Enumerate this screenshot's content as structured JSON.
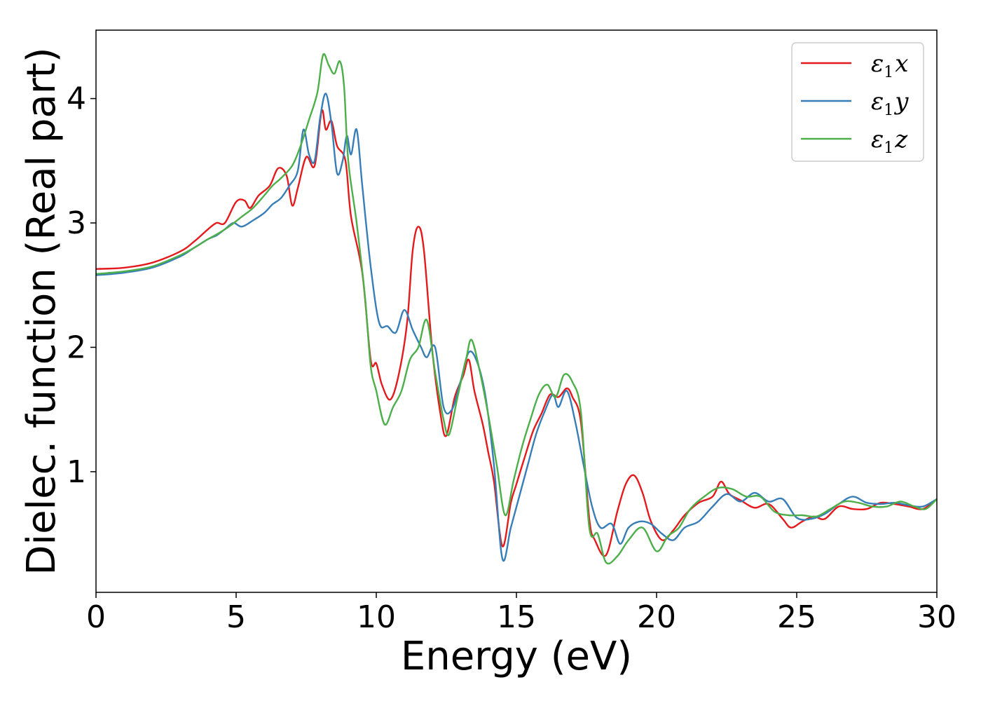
{
  "chart_data": {
    "type": "line",
    "title": "",
    "xlabel": "Energy (eV)",
    "ylabel": "Dielec. function (Real part)",
    "xlim": [
      0,
      30
    ],
    "ylim": [
      0.03,
      4.55
    ],
    "xticks": [
      0,
      5,
      10,
      15,
      20,
      25,
      30
    ],
    "yticks": [
      1,
      2,
      3,
      4
    ],
    "grid": false,
    "legend_position": "top-right",
    "legend_base": "ε",
    "legend_sub": "1",
    "series": [
      {
        "name": "ε1x",
        "axis_letter": "x",
        "color": "#e41a1c",
        "points": [
          [
            0,
            2.63
          ],
          [
            1,
            2.64
          ],
          [
            2,
            2.68
          ],
          [
            3,
            2.77
          ],
          [
            3.5,
            2.85
          ],
          [
            4,
            2.95
          ],
          [
            4.3,
            3.0
          ],
          [
            4.6,
            3.0
          ],
          [
            5.0,
            3.17
          ],
          [
            5.3,
            3.18
          ],
          [
            5.5,
            3.12
          ],
          [
            5.8,
            3.22
          ],
          [
            6.2,
            3.3
          ],
          [
            6.5,
            3.44
          ],
          [
            6.8,
            3.38
          ],
          [
            7.0,
            3.14
          ],
          [
            7.2,
            3.28
          ],
          [
            7.5,
            3.53
          ],
          [
            7.8,
            3.46
          ],
          [
            8.05,
            3.9
          ],
          [
            8.2,
            3.75
          ],
          [
            8.4,
            3.82
          ],
          [
            8.6,
            3.62
          ],
          [
            8.9,
            3.5
          ],
          [
            9.1,
            3.05
          ],
          [
            9.5,
            2.6
          ],
          [
            9.8,
            1.9
          ],
          [
            10.0,
            1.87
          ],
          [
            10.2,
            1.7
          ],
          [
            10.5,
            1.58
          ],
          [
            10.8,
            1.78
          ],
          [
            11.1,
            2.2
          ],
          [
            11.3,
            2.78
          ],
          [
            11.5,
            2.97
          ],
          [
            11.7,
            2.78
          ],
          [
            12.0,
            1.97
          ],
          [
            12.3,
            1.45
          ],
          [
            12.5,
            1.29
          ],
          [
            12.8,
            1.6
          ],
          [
            13.1,
            1.77
          ],
          [
            13.3,
            1.9
          ],
          [
            13.5,
            1.65
          ],
          [
            13.8,
            1.38
          ],
          [
            14.0,
            1.15
          ],
          [
            14.2,
            0.92
          ],
          [
            14.5,
            0.4
          ],
          [
            14.8,
            0.75
          ],
          [
            15.0,
            0.9
          ],
          [
            15.3,
            1.12
          ],
          [
            15.6,
            1.33
          ],
          [
            15.9,
            1.47
          ],
          [
            16.2,
            1.62
          ],
          [
            16.5,
            1.6
          ],
          [
            16.8,
            1.67
          ],
          [
            17.0,
            1.6
          ],
          [
            17.3,
            1.4
          ],
          [
            17.6,
            0.62
          ],
          [
            17.8,
            0.45
          ],
          [
            18.2,
            0.33
          ],
          [
            18.6,
            0.68
          ],
          [
            18.9,
            0.9
          ],
          [
            19.2,
            0.97
          ],
          [
            19.5,
            0.83
          ],
          [
            19.8,
            0.6
          ],
          [
            20.2,
            0.45
          ],
          [
            20.6,
            0.53
          ],
          [
            21.0,
            0.65
          ],
          [
            21.5,
            0.75
          ],
          [
            22.0,
            0.8
          ],
          [
            22.3,
            0.92
          ],
          [
            22.6,
            0.82
          ],
          [
            23.0,
            0.77
          ],
          [
            23.5,
            0.71
          ],
          [
            24.0,
            0.74
          ],
          [
            24.5,
            0.62
          ],
          [
            24.8,
            0.55
          ],
          [
            25.2,
            0.6
          ],
          [
            25.6,
            0.64
          ],
          [
            26.0,
            0.62
          ],
          [
            26.5,
            0.72
          ],
          [
            27.0,
            0.7
          ],
          [
            27.5,
            0.7
          ],
          [
            28.0,
            0.75
          ],
          [
            28.5,
            0.74
          ],
          [
            29.0,
            0.72
          ],
          [
            29.5,
            0.7
          ],
          [
            30.0,
            0.78
          ]
        ]
      },
      {
        "name": "ε1y",
        "axis_letter": "y",
        "color": "#377eb8",
        "points": [
          [
            0,
            2.58
          ],
          [
            1,
            2.6
          ],
          [
            2,
            2.64
          ],
          [
            3,
            2.73
          ],
          [
            3.5,
            2.8
          ],
          [
            4,
            2.87
          ],
          [
            4.3,
            2.9
          ],
          [
            4.6,
            2.95
          ],
          [
            4.9,
            3.0
          ],
          [
            5.2,
            2.97
          ],
          [
            5.6,
            3.02
          ],
          [
            6.0,
            3.08
          ],
          [
            6.3,
            3.15
          ],
          [
            6.6,
            3.2
          ],
          [
            6.9,
            3.3
          ],
          [
            7.2,
            3.42
          ],
          [
            7.4,
            3.75
          ],
          [
            7.6,
            3.55
          ],
          [
            7.8,
            3.5
          ],
          [
            8.0,
            3.85
          ],
          [
            8.2,
            4.04
          ],
          [
            8.4,
            3.8
          ],
          [
            8.6,
            3.4
          ],
          [
            8.8,
            3.5
          ],
          [
            8.95,
            3.7
          ],
          [
            9.1,
            3.55
          ],
          [
            9.3,
            3.75
          ],
          [
            9.5,
            3.3
          ],
          [
            9.8,
            2.65
          ],
          [
            10.1,
            2.2
          ],
          [
            10.4,
            2.17
          ],
          [
            10.7,
            2.12
          ],
          [
            11.0,
            2.3
          ],
          [
            11.3,
            2.14
          ],
          [
            11.6,
            2.0
          ],
          [
            11.8,
            1.92
          ],
          [
            12.1,
            2.0
          ],
          [
            12.4,
            1.52
          ],
          [
            12.7,
            1.5
          ],
          [
            13.0,
            1.72
          ],
          [
            13.3,
            1.96
          ],
          [
            13.6,
            1.88
          ],
          [
            13.9,
            1.6
          ],
          [
            14.2,
            1.05
          ],
          [
            14.5,
            0.3
          ],
          [
            14.8,
            0.55
          ],
          [
            15.1,
            0.8
          ],
          [
            15.4,
            1.05
          ],
          [
            15.7,
            1.3
          ],
          [
            16.0,
            1.48
          ],
          [
            16.3,
            1.62
          ],
          [
            16.5,
            1.52
          ],
          [
            16.8,
            1.65
          ],
          [
            17.1,
            1.4
          ],
          [
            17.4,
            1.05
          ],
          [
            17.7,
            0.72
          ],
          [
            18.0,
            0.55
          ],
          [
            18.4,
            0.58
          ],
          [
            18.7,
            0.42
          ],
          [
            19.0,
            0.55
          ],
          [
            19.4,
            0.6
          ],
          [
            19.8,
            0.58
          ],
          [
            20.2,
            0.5
          ],
          [
            20.6,
            0.45
          ],
          [
            21.0,
            0.55
          ],
          [
            21.5,
            0.6
          ],
          [
            22.0,
            0.72
          ],
          [
            22.5,
            0.82
          ],
          [
            23.0,
            0.76
          ],
          [
            23.5,
            0.83
          ],
          [
            24.0,
            0.76
          ],
          [
            24.5,
            0.78
          ],
          [
            25.0,
            0.63
          ],
          [
            25.5,
            0.62
          ],
          [
            26.0,
            0.66
          ],
          [
            26.5,
            0.74
          ],
          [
            27.0,
            0.8
          ],
          [
            27.5,
            0.75
          ],
          [
            28.0,
            0.74
          ],
          [
            28.5,
            0.75
          ],
          [
            29.0,
            0.73
          ],
          [
            29.5,
            0.72
          ],
          [
            30.0,
            0.78
          ]
        ]
      },
      {
        "name": "ε1z",
        "axis_letter": "z",
        "color": "#4daf4a",
        "points": [
          [
            0,
            2.59
          ],
          [
            1,
            2.61
          ],
          [
            2,
            2.65
          ],
          [
            3,
            2.74
          ],
          [
            3.5,
            2.8
          ],
          [
            4,
            2.87
          ],
          [
            4.4,
            2.92
          ],
          [
            4.8,
            2.98
          ],
          [
            5.2,
            3.05
          ],
          [
            5.6,
            3.12
          ],
          [
            6.0,
            3.22
          ],
          [
            6.3,
            3.3
          ],
          [
            6.6,
            3.36
          ],
          [
            7.0,
            3.46
          ],
          [
            7.3,
            3.62
          ],
          [
            7.6,
            3.83
          ],
          [
            7.9,
            4.05
          ],
          [
            8.1,
            4.35
          ],
          [
            8.3,
            4.27
          ],
          [
            8.5,
            4.2
          ],
          [
            8.7,
            4.3
          ],
          [
            8.85,
            4.1
          ],
          [
            9.0,
            3.5
          ],
          [
            9.3,
            3.0
          ],
          [
            9.6,
            2.4
          ],
          [
            9.8,
            1.85
          ],
          [
            10.0,
            1.65
          ],
          [
            10.3,
            1.38
          ],
          [
            10.6,
            1.52
          ],
          [
            10.9,
            1.65
          ],
          [
            11.2,
            1.9
          ],
          [
            11.5,
            2.0
          ],
          [
            11.8,
            2.22
          ],
          [
            12.1,
            1.8
          ],
          [
            12.4,
            1.42
          ],
          [
            12.6,
            1.3
          ],
          [
            12.9,
            1.6
          ],
          [
            13.2,
            1.9
          ],
          [
            13.4,
            2.06
          ],
          [
            13.7,
            1.8
          ],
          [
            14.0,
            1.45
          ],
          [
            14.3,
            1.05
          ],
          [
            14.6,
            0.65
          ],
          [
            14.9,
            0.93
          ],
          [
            15.2,
            1.2
          ],
          [
            15.5,
            1.42
          ],
          [
            15.8,
            1.62
          ],
          [
            16.1,
            1.7
          ],
          [
            16.4,
            1.6
          ],
          [
            16.7,
            1.78
          ],
          [
            17.0,
            1.72
          ],
          [
            17.3,
            1.48
          ],
          [
            17.6,
            0.55
          ],
          [
            17.9,
            0.5
          ],
          [
            18.2,
            0.27
          ],
          [
            18.6,
            0.32
          ],
          [
            19.0,
            0.45
          ],
          [
            19.5,
            0.55
          ],
          [
            20.0,
            0.36
          ],
          [
            20.4,
            0.48
          ],
          [
            20.8,
            0.55
          ],
          [
            21.2,
            0.7
          ],
          [
            21.7,
            0.8
          ],
          [
            22.2,
            0.87
          ],
          [
            22.7,
            0.86
          ],
          [
            23.2,
            0.8
          ],
          [
            23.7,
            0.8
          ],
          [
            24.2,
            0.68
          ],
          [
            24.7,
            0.65
          ],
          [
            25.2,
            0.65
          ],
          [
            25.7,
            0.64
          ],
          [
            26.2,
            0.7
          ],
          [
            26.7,
            0.76
          ],
          [
            27.2,
            0.75
          ],
          [
            27.7,
            0.72
          ],
          [
            28.2,
            0.72
          ],
          [
            28.7,
            0.76
          ],
          [
            29.2,
            0.72
          ],
          [
            29.6,
            0.7
          ],
          [
            30.0,
            0.78
          ]
        ]
      }
    ]
  }
}
